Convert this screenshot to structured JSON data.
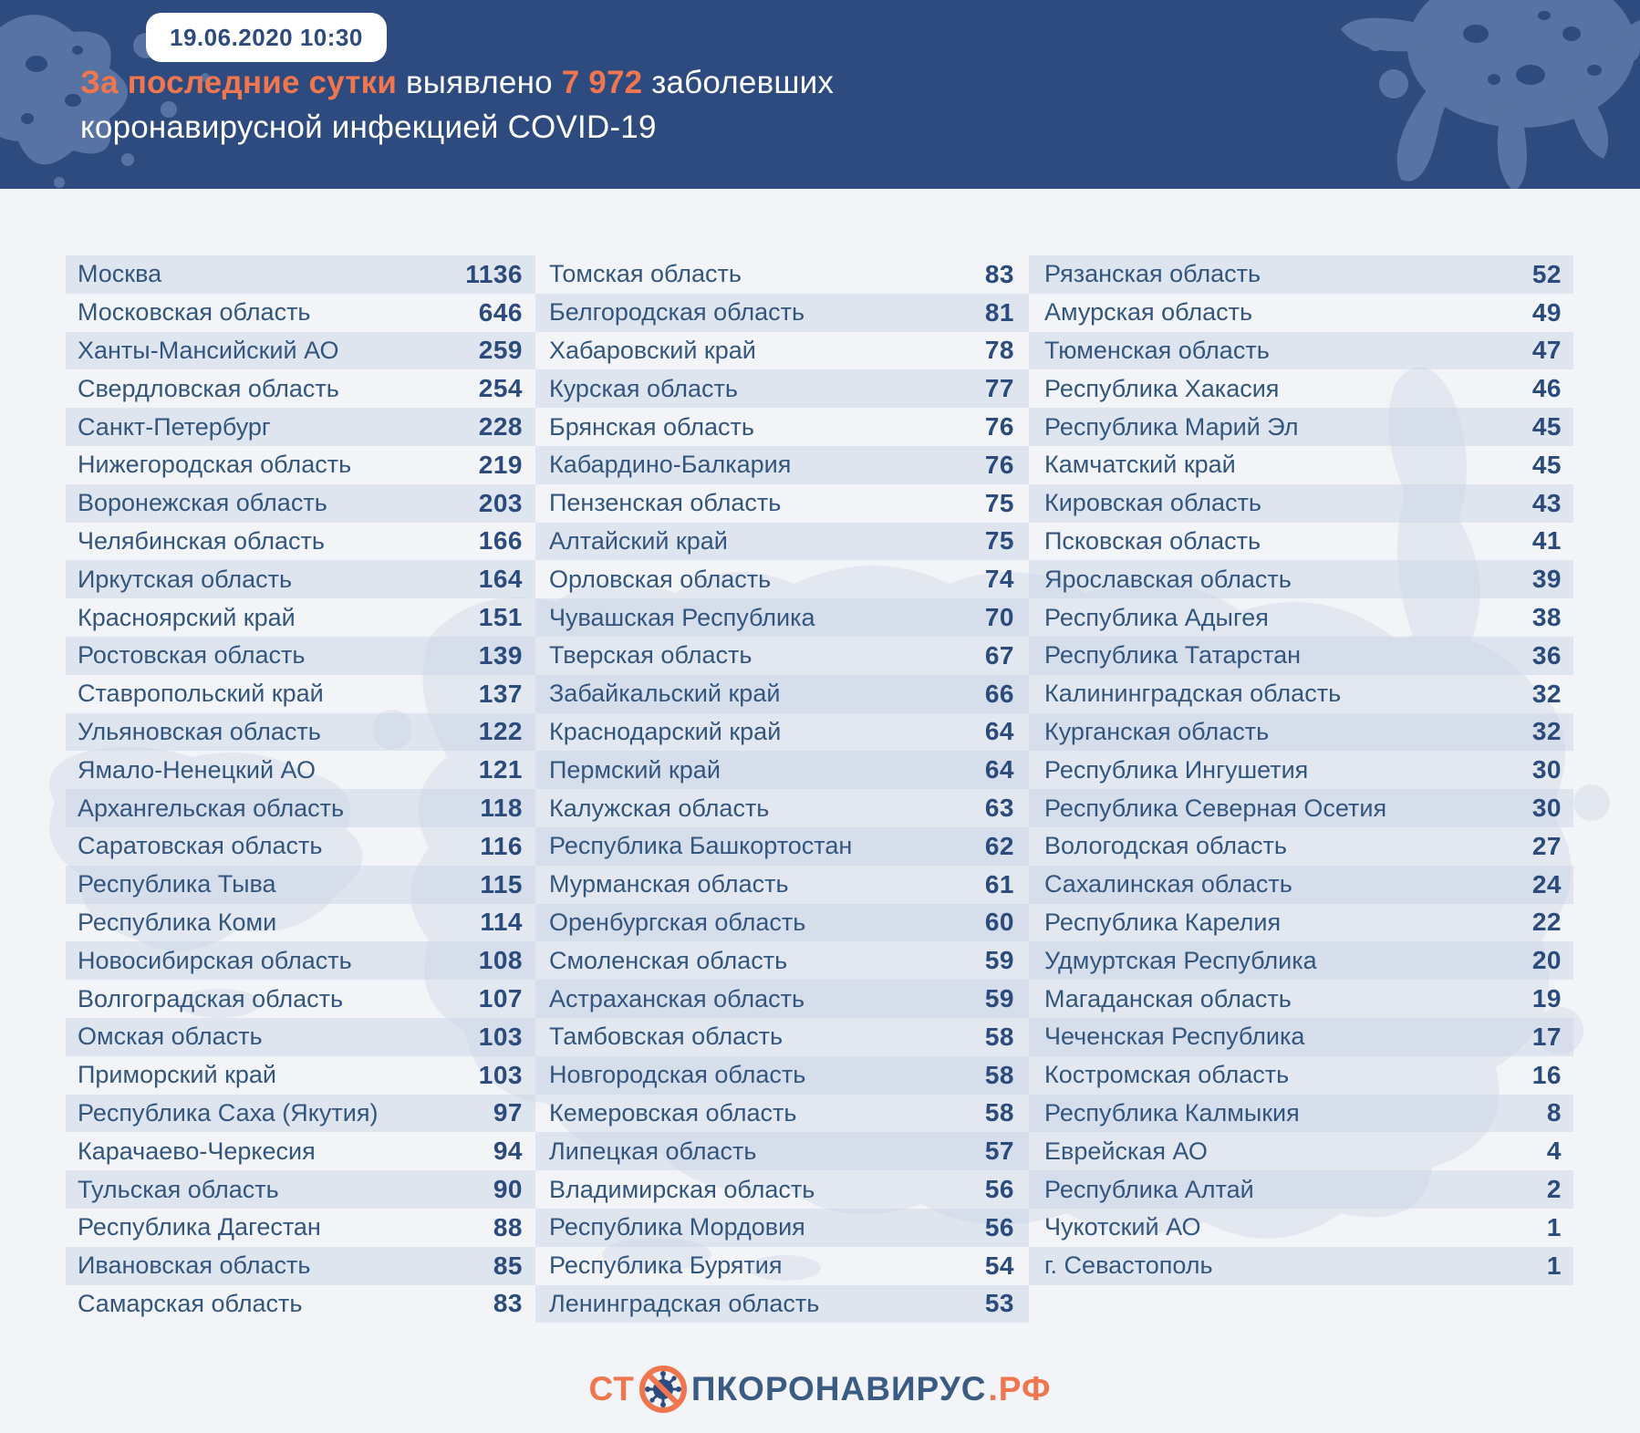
{
  "header": {
    "badge": "19.06.2020 10:30",
    "title_accent1": "За последние сутки",
    "title_mid": " выявлено ",
    "title_accent2": "7 972",
    "title_end": " заболевших",
    "title_line2": "коронавирусной инфекцией COVID-19"
  },
  "footer": {
    "logo_prefix": "СТ",
    "logo_main": "ПКОРОНАВИРУС",
    "logo_suffix": ".РФ",
    "logo_icon": "no-virus-icon"
  },
  "colors": {
    "header_bg": "#2d4b7e",
    "splat_blue": "#5673a3",
    "page_bg": "#f2f4f8",
    "accent_orange": "#f0764f",
    "region_text": "#33567f",
    "value_text": "#2a4b7c"
  },
  "chart_data": {
    "type": "table",
    "title": "За последние сутки выявлено 7 972 заболевших коронавирусной инфекцией COVID-19",
    "timestamp": "19.06.2020 10:30",
    "total_new_cases": 7972,
    "legend_position": "none",
    "columns": [
      {
        "rows": [
          [
            "Москва",
            1136
          ],
          [
            "Московская область",
            646
          ],
          [
            "Ханты-Мансийский АО",
            259
          ],
          [
            "Свердловская область",
            254
          ],
          [
            "Санкт-Петербург",
            228
          ],
          [
            "Нижегородская область",
            219
          ],
          [
            "Воронежская область",
            203
          ],
          [
            "Челябинская область",
            166
          ],
          [
            "Иркутская область",
            164
          ],
          [
            "Красноярский край",
            151
          ],
          [
            "Ростовская область",
            139
          ],
          [
            "Ставропольский край",
            137
          ],
          [
            "Ульяновская область",
            122
          ],
          [
            "Ямало-Ненецкий АО",
            121
          ],
          [
            "Архангельская область",
            118
          ],
          [
            "Саратовская область",
            116
          ],
          [
            "Республика Тыва",
            115
          ],
          [
            "Республика Коми",
            114
          ],
          [
            "Новосибирская область",
            108
          ],
          [
            "Волгоградская область",
            107
          ],
          [
            "Омская область",
            103
          ],
          [
            "Приморский край",
            103
          ],
          [
            "Республика Саха (Якутия)",
            97
          ],
          [
            "Карачаево-Черкесия",
            94
          ],
          [
            "Тульская область",
            90
          ],
          [
            "Республика Дагестан",
            88
          ],
          [
            "Ивановская область",
            85
          ],
          [
            "Самарская область",
            83
          ]
        ]
      },
      {
        "rows": [
          [
            "Томская область",
            83
          ],
          [
            "Белгородская область",
            81
          ],
          [
            "Хабаровский край",
            78
          ],
          [
            "Курская область",
            77
          ],
          [
            "Брянская область",
            76
          ],
          [
            "Кабардино-Балкария",
            76
          ],
          [
            "Пензенская область",
            75
          ],
          [
            "Алтайский край",
            75
          ],
          [
            "Орловская область",
            74
          ],
          [
            "Чувашская Республика",
            70
          ],
          [
            "Тверская область",
            67
          ],
          [
            "Забайкальский край",
            66
          ],
          [
            "Краснодарский край",
            64
          ],
          [
            "Пермский край",
            64
          ],
          [
            "Калужская область",
            63
          ],
          [
            "Республика Башкортостан",
            62
          ],
          [
            "Мурманская область",
            61
          ],
          [
            "Оренбургская область",
            60
          ],
          [
            "Смоленская область",
            59
          ],
          [
            "Астраханская область",
            59
          ],
          [
            "Тамбовская область",
            58
          ],
          [
            "Новгородская область",
            58
          ],
          [
            "Кемеровская область",
            58
          ],
          [
            "Липецкая область",
            57
          ],
          [
            "Владимирская область",
            56
          ],
          [
            "Республика Мордовия",
            56
          ],
          [
            "Республика Бурятия",
            54
          ],
          [
            "Ленинградская область",
            53
          ]
        ]
      },
      {
        "rows": [
          [
            "Рязанская область",
            52
          ],
          [
            "Амурская область",
            49
          ],
          [
            "Тюменская область",
            47
          ],
          [
            "Республика Хакасия",
            46
          ],
          [
            "Республика Марий Эл",
            45
          ],
          [
            "Камчатский край",
            45
          ],
          [
            "Кировская область",
            43
          ],
          [
            "Псковская область",
            41
          ],
          [
            "Ярославская область",
            39
          ],
          [
            "Республика Адыгея",
            38
          ],
          [
            "Республика Татарстан",
            36
          ],
          [
            "Калининградская область",
            32
          ],
          [
            "Курганская область",
            32
          ],
          [
            "Республика Ингушетия",
            30
          ],
          [
            "Республика Северная Осетия",
            30
          ],
          [
            "Вологодская область",
            27
          ],
          [
            "Сахалинская область",
            24
          ],
          [
            "Республика Карелия",
            22
          ],
          [
            "Удмуртская Республика",
            20
          ],
          [
            "Магаданская область",
            19
          ],
          [
            "Чеченская Республика",
            17
          ],
          [
            "Костромская область",
            16
          ],
          [
            "Республика Калмыкия",
            8
          ],
          [
            "Еврейская АО",
            4
          ],
          [
            "Республика Алтай",
            2
          ],
          [
            "Чукотский АО",
            1
          ],
          [
            "г. Севастополь",
            1
          ]
        ]
      }
    ]
  }
}
